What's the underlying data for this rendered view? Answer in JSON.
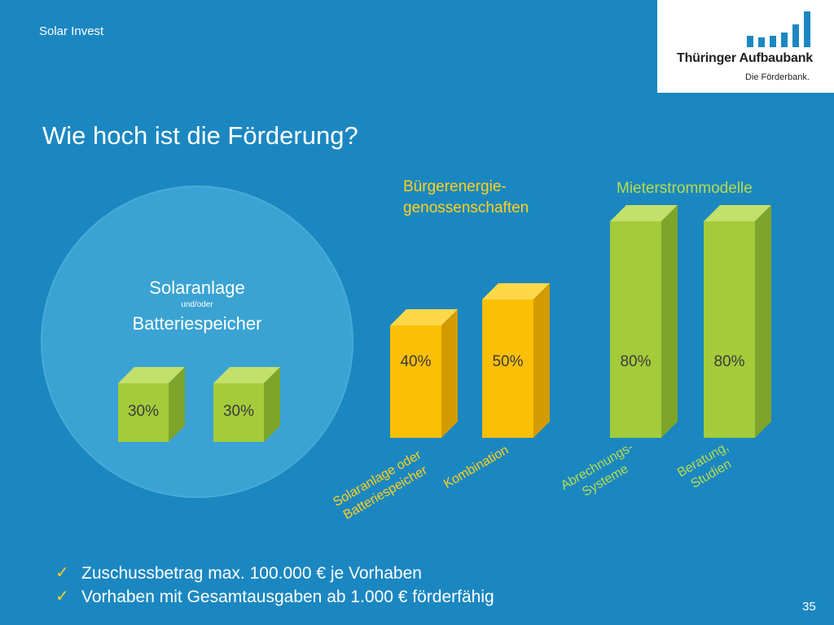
{
  "header": {
    "label": "Solar Invest"
  },
  "logo": {
    "name": "Thüringer Aufbaubank",
    "tagline": "Die Förderbank.",
    "accent": "#1b87c1"
  },
  "page": {
    "title": "Wie hoch ist die Förderung?",
    "number": "35"
  },
  "circle": {
    "line1": "Solaranlage",
    "line2": "und/oder",
    "line3": "Batteriespeicher"
  },
  "groups": {
    "buerger": "Bürgerenergie-\ngenossenschaften",
    "mieter": "Mieterstrommodelle"
  },
  "colors": {
    "background": "#1b87c1",
    "yellow": "#fbbf05",
    "green": "#a4cb3a"
  },
  "chart_data": {
    "type": "bar",
    "unit": "%",
    "bars": [
      {
        "group": "circle",
        "value": 30,
        "label": "30%",
        "category": ""
      },
      {
        "group": "circle",
        "value": 30,
        "label": "30%",
        "category": ""
      },
      {
        "group": "buerger",
        "value": 40,
        "label": "40%",
        "category": "Solaranlage oder\nBatteriespeicher"
      },
      {
        "group": "buerger",
        "value": 50,
        "label": "50%",
        "category": "Kombination"
      },
      {
        "group": "mieter",
        "value": 80,
        "label": "80%",
        "category": "Abrechnungs-\nSysteme"
      },
      {
        "group": "mieter",
        "value": 80,
        "label": "80%",
        "category": "Beratung,\nStudien"
      }
    ]
  },
  "bullets": [
    "Zuschussbetrag max. 100.000 € je Vorhaben",
    "Vorhaben mit Gesamtausgaben ab 1.000 € förderfähig"
  ]
}
